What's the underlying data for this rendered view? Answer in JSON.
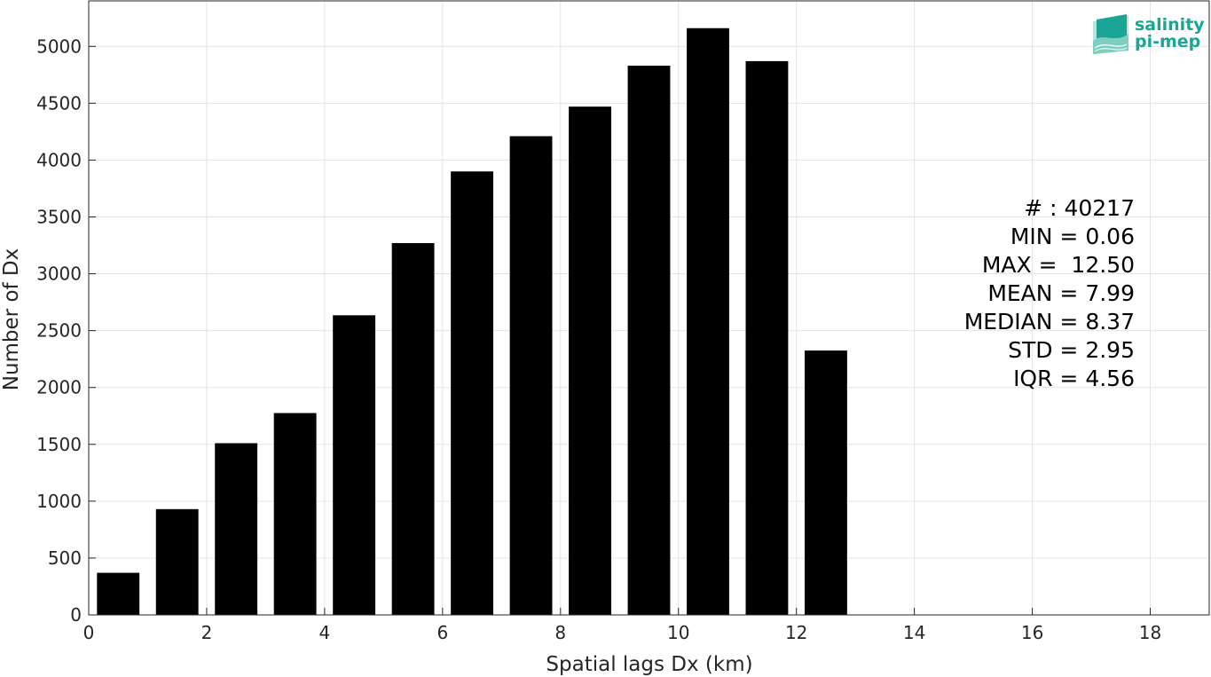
{
  "chart_data": {
    "type": "bar",
    "x": [
      0.5,
      1.5,
      2.5,
      3.5,
      4.5,
      5.5,
      6.5,
      7.5,
      8.5,
      9.5,
      10.5,
      11.5,
      12.5
    ],
    "values": [
      370,
      930,
      1510,
      1775,
      2635,
      3270,
      3900,
      4210,
      4470,
      4830,
      5160,
      4870,
      2325
    ],
    "xlabel": "Spatial lags Dx (km)",
    "ylabel": "Number of Dx",
    "xlim": [
      0,
      19
    ],
    "ylim": [
      0,
      5400
    ],
    "xticks": [
      0,
      2,
      4,
      6,
      8,
      10,
      12,
      14,
      16,
      18
    ],
    "yticks": [
      0,
      500,
      1000,
      1500,
      2000,
      2500,
      3000,
      3500,
      4000,
      4500,
      5000
    ],
    "grid": true,
    "bar_color": "#000000",
    "annotations": [
      "# : 40217",
      "MIN = 0.06",
      "MAX =  12.50",
      "MEAN = 7.99",
      "MEDIAN = 8.37",
      "STD = 2.95",
      "IQR = 4.56"
    ]
  },
  "logo": {
    "line1": "salinity",
    "line2": "pi-mep",
    "color": "#1aa595"
  }
}
